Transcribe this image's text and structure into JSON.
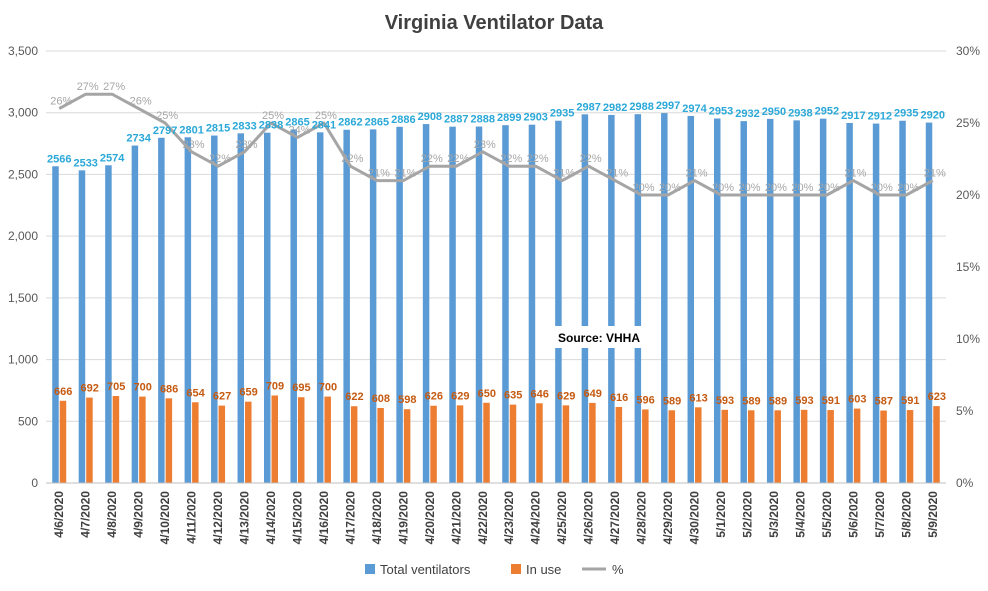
{
  "chart_data": {
    "type": "bar",
    "title": "Virginia Ventilator Data",
    "categories": [
      "4/6/2020",
      "4/7/2020",
      "4/8/2020",
      "4/9/2020",
      "4/10/2020",
      "4/11/2020",
      "4/12/2020",
      "4/13/2020",
      "4/14/2020",
      "4/15/2020",
      "4/16/2020",
      "4/17/2020",
      "4/18/2020",
      "4/19/2020",
      "4/20/2020",
      "4/21/2020",
      "4/22/2020",
      "4/23/2020",
      "4/24/2020",
      "4/25/2020",
      "4/26/2020",
      "4/27/2020",
      "4/28/2020",
      "4/29/2020",
      "4/30/2020",
      "5/1/2020",
      "5/2/2020",
      "5/3/2020",
      "5/4/2020",
      "5/5/2020",
      "5/6/2020",
      "5/7/2020",
      "5/8/2020",
      "5/9/2020"
    ],
    "series": [
      {
        "name": "Total ventilators",
        "type": "bar",
        "axis": "left",
        "color": "#5b9bd5",
        "label_color": "#2aa8d8",
        "values": [
          2566,
          2533,
          2574,
          2734,
          2797,
          2801,
          2815,
          2833,
          2838,
          2865,
          2841,
          2862,
          2865,
          2886,
          2908,
          2887,
          2888,
          2899,
          2903,
          2935,
          2987,
          2982,
          2988,
          2997,
          2974,
          2953,
          2932,
          2950,
          2938,
          2952,
          2917,
          2912,
          2935,
          2920
        ]
      },
      {
        "name": "In use",
        "type": "bar",
        "axis": "left",
        "color": "#ed7d31",
        "label_color": "#c55a11",
        "values": [
          666,
          692,
          705,
          700,
          686,
          654,
          627,
          659,
          709,
          695,
          700,
          622,
          608,
          598,
          626,
          629,
          650,
          635,
          646,
          629,
          649,
          616,
          596,
          589,
          613,
          593,
          589,
          589,
          593,
          591,
          603,
          587,
          591,
          623
        ]
      },
      {
        "name": "%",
        "type": "line",
        "axis": "right",
        "color": "#a5a5a5",
        "values": [
          26,
          27,
          27,
          26,
          25,
          23,
          22,
          23,
          25,
          24,
          25,
          22,
          21,
          21,
          22,
          22,
          23,
          22,
          22,
          21,
          22,
          21,
          20,
          20,
          21,
          20,
          20,
          20,
          20,
          20,
          21,
          20,
          20,
          21
        ],
        "point_labels": [
          "26%",
          "27%",
          "27%",
          "26%",
          "25%",
          "23%",
          "22%",
          "23%",
          "25%",
          "24%",
          "25%",
          "22%",
          "21%",
          "21%",
          "22%",
          "22%",
          "23%",
          "22%",
          "22%",
          "21%",
          "22%",
          "21%",
          "20%",
          "20%",
          "21%",
          "20%",
          "20%",
          "20%",
          "20%",
          "20%",
          "21%",
          "20%",
          "20%",
          "21%"
        ]
      }
    ],
    "ylim": [
      0,
      3500
    ],
    "y_ticks": [
      "0",
      "500",
      "1,000",
      "1,500",
      "2,000",
      "2,500",
      "3,000",
      "3,500"
    ],
    "y2lim": [
      0,
      30
    ],
    "y2_ticks": [
      "0%",
      "5%",
      "10%",
      "15%",
      "20%",
      "25%",
      "30%"
    ],
    "grid": "horizontal",
    "legend": "bottom",
    "annotation": "Source: VHHA"
  }
}
